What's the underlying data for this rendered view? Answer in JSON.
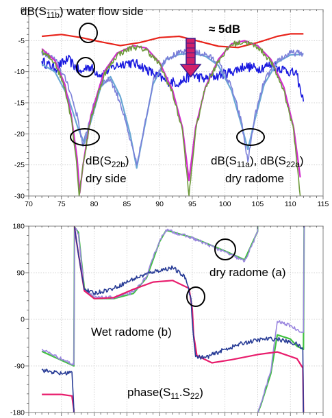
{
  "chart_data": [
    {
      "type": "line",
      "xlim": [
        70,
        115
      ],
      "ylim": [
        -30,
        0
      ],
      "x_ticks": [
        "70",
        "75",
        "80",
        "85",
        "90",
        "95",
        "100",
        "105",
        "110",
        "115"
      ],
      "y_ticks": [
        "0",
        "-5",
        "-10",
        "-15",
        "-20",
        "-25",
        "-30"
      ],
      "grid": true,
      "annotations": {
        "s11b_prefix": "dB(S",
        "s11b_sub": "11b",
        "s11b_suffix": ") water flow side",
        "delta": "≈ 5dB",
        "s22b_line1_prefix": "dB(S",
        "s22b_line1_sub": "22b",
        "s22b_line1_suffix": ")",
        "s22b_line2": "dry side",
        "s11a_prefix": "dB(S",
        "s11a_sub": "11a",
        "s11a_middle": "), dB(S",
        "s22a_sub": "22a",
        "s11a_suffix": ")",
        "dry_radome": "dry radome"
      },
      "series": [
        {
          "color": "#e8231a",
          "style": "smooth",
          "points": [
            [
              72,
              -4.3
            ],
            [
              75,
              -4.0
            ],
            [
              78,
              -4.5
            ],
            [
              81,
              -5.2
            ],
            [
              84,
              -5.8
            ],
            [
              87,
              -5.3
            ],
            [
              90,
              -4.5
            ],
            [
              93,
              -4.3
            ],
            [
              96,
              -5.1
            ],
            [
              99,
              -5.9
            ],
            [
              102,
              -6.1
            ],
            [
              105,
              -5.3
            ],
            [
              108,
              -4.3
            ],
            [
              110,
              -3.9
            ],
            [
              112,
              -3.9
            ]
          ]
        },
        {
          "color": "#1a1adf",
          "style": "noisy",
          "amp": 0.8,
          "points": [
            [
              72,
              -8.3
            ],
            [
              74,
              -9.5
            ],
            [
              76,
              -8.0
            ],
            [
              78,
              -10.2
            ],
            [
              79,
              -9.0
            ],
            [
              81,
              -10.5
            ],
            [
              83,
              -9.2
            ],
            [
              85,
              -8.5
            ],
            [
              87,
              -8.9
            ],
            [
              89,
              -10.3
            ],
            [
              91,
              -11.5
            ],
            [
              93,
              -11.8
            ],
            [
              95,
              -10.5
            ],
            [
              97,
              -11.2
            ],
            [
              99,
              -10.6
            ],
            [
              101,
              -10.0
            ],
            [
              103,
              -9.1
            ],
            [
              105,
              -9.5
            ],
            [
              107,
              -8.9
            ],
            [
              109,
              -9.6
            ],
            [
              111,
              -10.5
            ],
            [
              111.6,
              -13.5
            ],
            [
              112,
              -14.8
            ]
          ]
        },
        {
          "color": "#6aa8d4",
          "style": "smooth",
          "points": [
            [
              72,
              -8.8
            ],
            [
              74,
              -10
            ],
            [
              76,
              -14
            ],
            [
              77.5,
              -19
            ],
            [
              78.5,
              -21.5
            ],
            [
              79.5,
              -18
            ],
            [
              81,
              -12.5
            ],
            [
              82.5,
              -10.8
            ],
            [
              84,
              -14
            ],
            [
              85.5,
              -20
            ],
            [
              86.5,
              -25.5
            ],
            [
              87.5,
              -20
            ],
            [
              89,
              -12
            ],
            [
              91,
              -8
            ],
            [
              93,
              -7.2
            ],
            [
              95,
              -7
            ],
            [
              97,
              -7.5
            ],
            [
              99,
              -9
            ],
            [
              101,
              -13
            ],
            [
              102.5,
              -18.5
            ],
            [
              103.5,
              -22.5
            ],
            [
              104.5,
              -18
            ],
            [
              106,
              -12
            ],
            [
              108,
              -8.5
            ],
            [
              110,
              -7.3
            ],
            [
              112,
              -7.2
            ]
          ]
        },
        {
          "color": "#7b7fd9",
          "style": "noisy",
          "amp": 0.5,
          "points": [
            [
              72,
              -6.8
            ],
            [
              74,
              -8
            ],
            [
              76,
              -12
            ],
            [
              77.5,
              -17.5
            ],
            [
              78.3,
              -22
            ],
            [
              79.5,
              -17
            ],
            [
              81,
              -11.8
            ],
            [
              82.5,
              -11.2
            ],
            [
              84,
              -15
            ],
            [
              85.5,
              -21
            ],
            [
              86.5,
              -25
            ],
            [
              87.5,
              -20
            ],
            [
              89,
              -11.5
            ],
            [
              91,
              -7.8
            ],
            [
              93,
              -7.0
            ],
            [
              95,
              -6.8
            ],
            [
              97,
              -7.2
            ],
            [
              99,
              -8.5
            ],
            [
              101,
              -12.5
            ],
            [
              102.5,
              -18
            ],
            [
              103.5,
              -24.5
            ],
            [
              104.5,
              -17.5
            ],
            [
              106,
              -11.5
            ],
            [
              108,
              -8.2
            ],
            [
              110,
              -7.0
            ],
            [
              112,
              -7.0
            ]
          ]
        },
        {
          "color": "#d42ad0",
          "style": "smooth",
          "points": [
            [
              72,
              -6.3
            ],
            [
              74,
              -8.2
            ],
            [
              75.5,
              -12
            ],
            [
              76.5,
              -17
            ],
            [
              77.4,
              -24
            ],
            [
              77.8,
              -29.5
            ],
            [
              78.3,
              -25
            ],
            [
              79.5,
              -17
            ],
            [
              81.5,
              -10
            ],
            [
              83.5,
              -7.0
            ],
            [
              86,
              -5.8
            ],
            [
              88,
              -6.2
            ],
            [
              90,
              -8.5
            ],
            [
              92,
              -13
            ],
            [
              93.5,
              -19
            ],
            [
              94.5,
              -27.5
            ],
            [
              95.5,
              -19
            ],
            [
              97,
              -12.5
            ],
            [
              99,
              -8
            ],
            [
              101,
              -5.5
            ],
            [
              103,
              -5.0
            ],
            [
              105,
              -5.8
            ],
            [
              107,
              -8
            ],
            [
              109,
              -12.5
            ],
            [
              110.5,
              -19
            ],
            [
              111.5,
              -27
            ]
          ]
        },
        {
          "color": "#6e9a3b",
          "style": "noisy",
          "amp": 0.45,
          "points": [
            [
              72,
              -6.8
            ],
            [
              74,
              -8.5
            ],
            [
              75.5,
              -12.5
            ],
            [
              76.5,
              -17.5
            ],
            [
              77.3,
              -24.5
            ],
            [
              77.7,
              -30
            ],
            [
              78.3,
              -25
            ],
            [
              79.5,
              -17.5
            ],
            [
              81.5,
              -10.5
            ],
            [
              83.5,
              -7.3
            ],
            [
              86,
              -6.0
            ],
            [
              88,
              -6.5
            ],
            [
              90,
              -8.8
            ],
            [
              92,
              -13.5
            ],
            [
              93.5,
              -19.5
            ],
            [
              94.5,
              -30
            ],
            [
              95.5,
              -19.5
            ],
            [
              97,
              -12.5
            ],
            [
              99,
              -8.2
            ],
            [
              101,
              -5.6
            ],
            [
              103,
              -5.2
            ],
            [
              105,
              -6.0
            ],
            [
              107,
              -8.3
            ],
            [
              109,
              -13
            ],
            [
              110.5,
              -19.5
            ],
            [
              111.5,
              -30
            ]
          ]
        }
      ]
    },
    {
      "type": "line",
      "xlim": [
        70,
        115
      ],
      "ylim": [
        -180,
        180
      ],
      "y_ticks": [
        "180",
        "90",
        "0",
        "-90",
        "-180"
      ],
      "grid": true,
      "annotations": {
        "dry_a": "dry radome (a)",
        "wet_b": "Wet radome (b)",
        "phase_prefix": "phase(S",
        "phase_sub1": "11",
        "phase_mid": ".S",
        "phase_sub2": "22",
        "phase_suffix": ")"
      },
      "series": [
        {
          "color": "#40c040",
          "style": "smooth",
          "points": [
            [
              72,
              -62
            ],
            [
              76.9,
              -90
            ],
            [
              77.0,
              178
            ],
            [
              77.6,
              168
            ],
            [
              78.5,
              60
            ],
            [
              80,
              40
            ],
            [
              83,
              40
            ],
            [
              86,
              50
            ],
            [
              88,
              80
            ],
            [
              89,
              115
            ],
            [
              90,
              150
            ],
            [
              91,
              172
            ],
            [
              95,
              158
            ],
            [
              100,
              132
            ],
            [
              103,
              115
            ],
            [
              105,
              170
            ],
            [
              105.1,
              -178
            ],
            [
              105.5,
              -165
            ],
            [
              107,
              -105
            ],
            [
              108,
              -30
            ],
            [
              110,
              -38
            ],
            [
              111,
              -52
            ],
            [
              112,
              -58
            ],
            [
              112.1,
              178
            ]
          ]
        },
        {
          "color": "#9a86df",
          "style": "noisy",
          "amp": 3,
          "points": [
            [
              72,
              -58
            ],
            [
              76.9,
              -88
            ],
            [
              77.0,
              178
            ],
            [
              77.6,
              165
            ],
            [
              78.5,
              58
            ],
            [
              80,
              42
            ],
            [
              83,
              42
            ],
            [
              86,
              52
            ],
            [
              88,
              82
            ],
            [
              89,
              118
            ],
            [
              90,
              152
            ],
            [
              91,
              173
            ],
            [
              95,
              157
            ],
            [
              100,
              130
            ],
            [
              103,
              112
            ],
            [
              105,
              168
            ],
            [
              105.1,
              -176
            ],
            [
              105.5,
              -162
            ],
            [
              107,
              -100
            ],
            [
              108,
              -4
            ],
            [
              110,
              -12
            ],
            [
              111,
              -20
            ],
            [
              112,
              -25
            ],
            [
              112.1,
              178
            ]
          ]
        },
        {
          "color": "#e81c6c",
          "style": "smooth",
          "points": [
            [
              72,
              -145
            ],
            [
              75,
              -145
            ],
            [
              76.6,
              -148
            ],
            [
              76.9,
              -175
            ],
            [
              77.0,
              178
            ],
            [
              77.3,
              150
            ],
            [
              78.5,
              55
            ],
            [
              80,
              40
            ],
            [
              83,
              42
            ],
            [
              86,
              58
            ],
            [
              89,
              72
            ],
            [
              92,
              75
            ],
            [
              94.5,
              60
            ],
            [
              95,
              20
            ],
            [
              95.2,
              -30
            ],
            [
              95.7,
              -70
            ],
            [
              98,
              -84
            ],
            [
              101,
              -78
            ],
            [
              105,
              -68
            ],
            [
              108,
              -63
            ],
            [
              111,
              -76
            ],
            [
              111.9,
              -94
            ],
            [
              112.0,
              -180
            ],
            [
              112.1,
              178
            ]
          ]
        },
        {
          "color": "#283c96",
          "style": "noisy",
          "amp": 4,
          "points": [
            [
              72,
              -98
            ],
            [
              75,
              -105
            ],
            [
              76.6,
              -102
            ],
            [
              76.9,
              -175
            ],
            [
              77.0,
              178
            ],
            [
              77.3,
              150
            ],
            [
              78.5,
              58
            ],
            [
              80,
              50
            ],
            [
              83,
              60
            ],
            [
              86,
              78
            ],
            [
              89,
              92
            ],
            [
              92,
              100
            ],
            [
              94,
              80
            ],
            [
              94.8,
              40
            ],
            [
              95.1,
              -20
            ],
            [
              95.5,
              -72
            ],
            [
              97,
              -74
            ],
            [
              100,
              -58
            ],
            [
              103,
              -45
            ],
            [
              106,
              -38
            ],
            [
              108,
              -38
            ],
            [
              111,
              -48
            ],
            [
              111.9,
              -58
            ],
            [
              112.0,
              -180
            ],
            [
              112.1,
              178
            ]
          ]
        }
      ]
    }
  ]
}
